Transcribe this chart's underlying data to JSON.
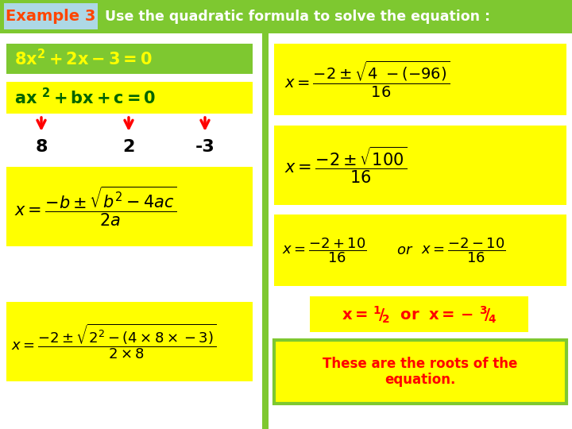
{
  "bg_color": "#ffffff",
  "header_green": "#7ec830",
  "header_blue": "#add8e6",
  "example3_color": "#ff4500",
  "title_text": "Use the quadratic formula to solve the equation :",
  "title_color": "#ffffff",
  "green_box": "#7ec830",
  "yellow_box": "#ffff00",
  "dark_green_text": "#006400",
  "yellow_text": "#ffff00",
  "black_text": "#000000",
  "red_text": "#ff0000",
  "divider_color": "#7ec830",
  "roots_box": "#ffff00",
  "roots_border": "#7ec830"
}
